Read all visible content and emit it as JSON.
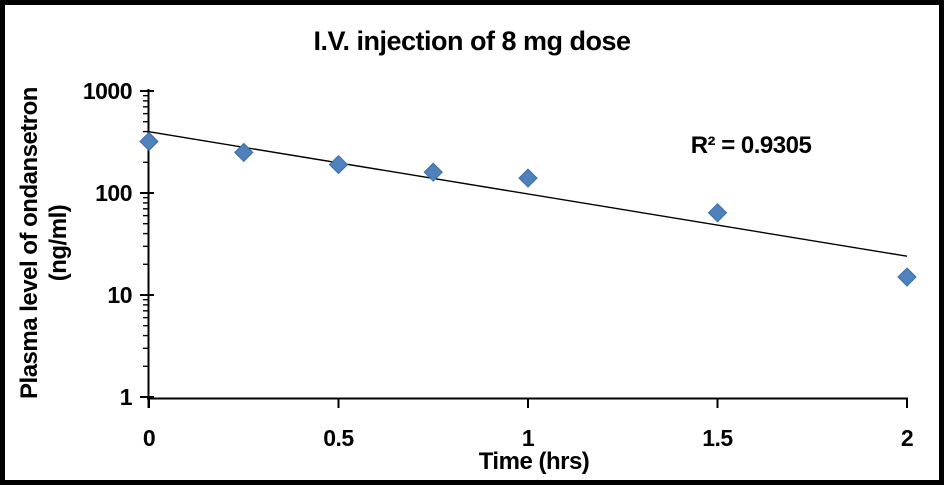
{
  "chart_data": {
    "type": "scatter",
    "title": "I.V. injection of 8 mg dose",
    "xlabel": "Time (hrs)",
    "ylabel_line1": "Plasma level of ondansetron",
    "ylabel_line2": "(ng/ml)",
    "x": [
      0,
      0.25,
      0.5,
      0.75,
      1,
      1.5,
      2
    ],
    "y": [
      320,
      250,
      190,
      160,
      140,
      64,
      15
    ],
    "xlim": [
      0,
      2
    ],
    "ylim": [
      1,
      1000
    ],
    "y_scale": "log",
    "x_tick_values": [
      0,
      0.5,
      1,
      1.5,
      2
    ],
    "x_tick_labels": [
      "0",
      "0.5",
      "1",
      "1.5",
      "2"
    ],
    "y_tick_values": [
      1000,
      100,
      10,
      1
    ],
    "y_tick_labels": [
      "1000",
      "100",
      "10",
      "1"
    ],
    "grid": false,
    "legend": false,
    "axis_color": "#000000",
    "marker": {
      "shape": "diamond",
      "color": "#4F81BD",
      "edge_color": "#3F6DA3",
      "size": 9
    },
    "trendline": {
      "type": "exponential",
      "color": "#000000",
      "start_value": 400,
      "end_value": 24,
      "r_squared_label": "R² = 0.9305"
    }
  }
}
